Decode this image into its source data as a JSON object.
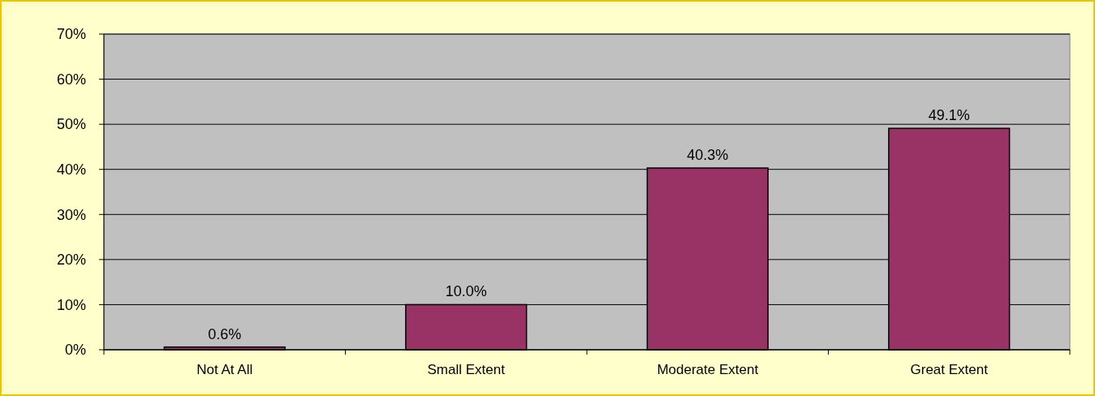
{
  "chart_data": {
    "type": "bar",
    "categories": [
      "Not At All",
      "Small Extent",
      "Moderate Extent",
      "Great Extent"
    ],
    "values": [
      0.6,
      10.0,
      40.3,
      49.1
    ],
    "value_labels": [
      "0.6%",
      "10.0%",
      "40.3%",
      "49.1%"
    ],
    "color": "#993366",
    "ylim": [
      0,
      70
    ],
    "yticks": [
      {
        "value": 0,
        "label": "0%"
      },
      {
        "value": 10,
        "label": "10%"
      },
      {
        "value": 20,
        "label": "20%"
      },
      {
        "value": 30,
        "label": "30%"
      },
      {
        "value": 40,
        "label": "40%"
      },
      {
        "value": 50,
        "label": "50%"
      },
      {
        "value": 60,
        "label": "60%"
      },
      {
        "value": 70,
        "label": "70%"
      }
    ],
    "grid": "y"
  }
}
